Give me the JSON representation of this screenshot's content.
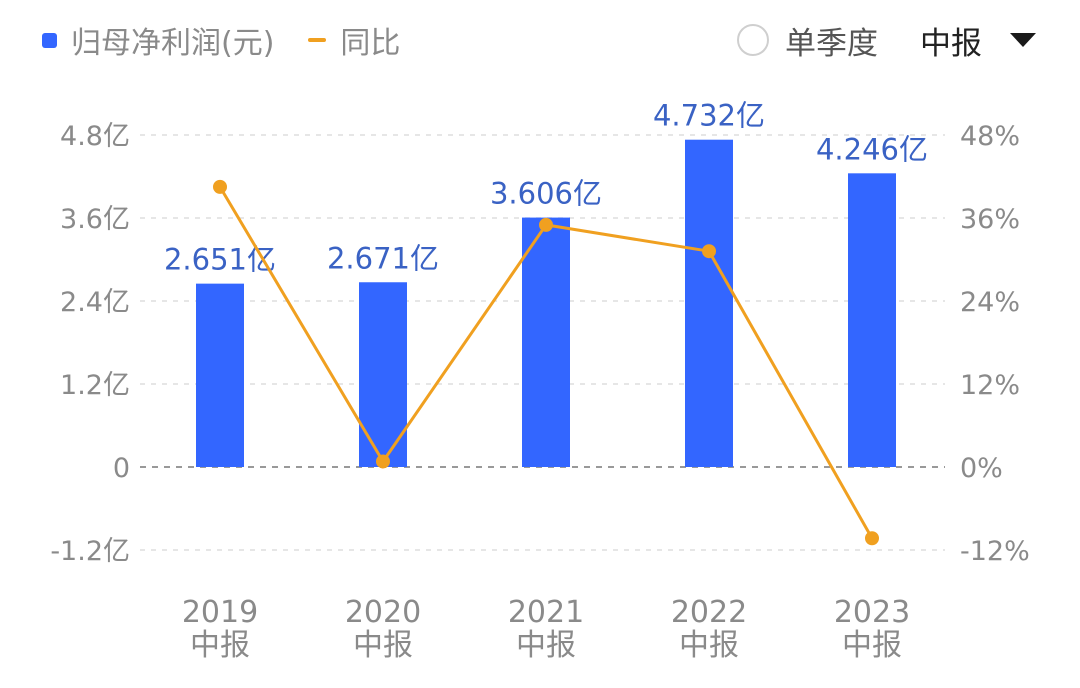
{
  "legend": {
    "bar_label": "归母净利润(元)",
    "line_label": "同比"
  },
  "controls": {
    "single_quarter_label": "单季度",
    "single_quarter_checked": false,
    "period_selected": "中报"
  },
  "colors": {
    "bar": "#3366ff",
    "line": "#f0a020",
    "data_label": "#3a62c4",
    "tick": "#8a8a8a",
    "grid": "#dddddd",
    "zero_line": "#999999"
  },
  "chart_data": {
    "type": "bar",
    "categories": [
      "2019\n中报",
      "2020\n中报",
      "2021\n中报",
      "2022\n中报",
      "2023\n中报"
    ],
    "series": [
      {
        "name": "归母净利润(元)",
        "type": "bar",
        "axis": "left",
        "values": [
          2.651,
          2.671,
          3.606,
          4.732,
          4.246
        ],
        "unit": "亿",
        "data_labels": [
          "2.651亿",
          "2.671亿",
          "3.606亿",
          "4.732亿",
          "4.246亿"
        ]
      },
      {
        "name": "同比",
        "type": "line",
        "axis": "right",
        "values": [
          40.5,
          0.8,
          35.0,
          31.2,
          -10.3
        ],
        "unit": "%"
      }
    ],
    "y_left": {
      "ylim": [
        -1.2,
        4.8
      ],
      "ticks": [
        4.8,
        3.6,
        2.4,
        1.2,
        0,
        -1.2
      ],
      "tick_labels": [
        "4.8亿",
        "3.6亿",
        "2.4亿",
        "1.2亿",
        "0",
        "-1.2亿"
      ]
    },
    "y_right": {
      "ylim": [
        -12,
        48
      ],
      "ticks": [
        48,
        36,
        24,
        12,
        0,
        -12
      ],
      "tick_labels": [
        "48%",
        "36%",
        "24%",
        "12%",
        "0%",
        "-12%"
      ]
    },
    "grid": true,
    "legend_position": "top-left"
  }
}
